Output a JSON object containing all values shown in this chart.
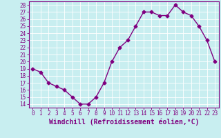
{
  "x": [
    0,
    1,
    2,
    3,
    4,
    5,
    6,
    7,
    8,
    9,
    10,
    11,
    12,
    13,
    14,
    15,
    16,
    17,
    18,
    19,
    20,
    21,
    22,
    23
  ],
  "y": [
    19.0,
    18.5,
    17.0,
    16.5,
    16.0,
    15.0,
    14.0,
    14.0,
    15.0,
    17.0,
    20.0,
    22.0,
    23.0,
    25.0,
    27.0,
    27.0,
    26.5,
    26.5,
    28.0,
    27.0,
    26.5,
    25.0,
    23.0,
    20.0
  ],
  "line_color": "#800080",
  "marker": "D",
  "markersize": 2.5,
  "linewidth": 1.0,
  "xlabel": "Windchill (Refroidissement éolien,°C)",
  "xlabel_fontsize": 7,
  "xlim": [
    -0.5,
    23.5
  ],
  "ylim_min": 13.5,
  "ylim_max": 28.5,
  "yticks": [
    14,
    15,
    16,
    17,
    18,
    19,
    20,
    21,
    22,
    23,
    24,
    25,
    26,
    27,
    28
  ],
  "xticks": [
    0,
    1,
    2,
    3,
    4,
    5,
    6,
    7,
    8,
    9,
    10,
    11,
    12,
    13,
    14,
    15,
    16,
    17,
    18,
    19,
    20,
    21,
    22,
    23
  ],
  "tick_fontsize": 5.5,
  "bg_color": "#c8eef0",
  "grid_color": "#ffffff",
  "line_purple": "#800080"
}
